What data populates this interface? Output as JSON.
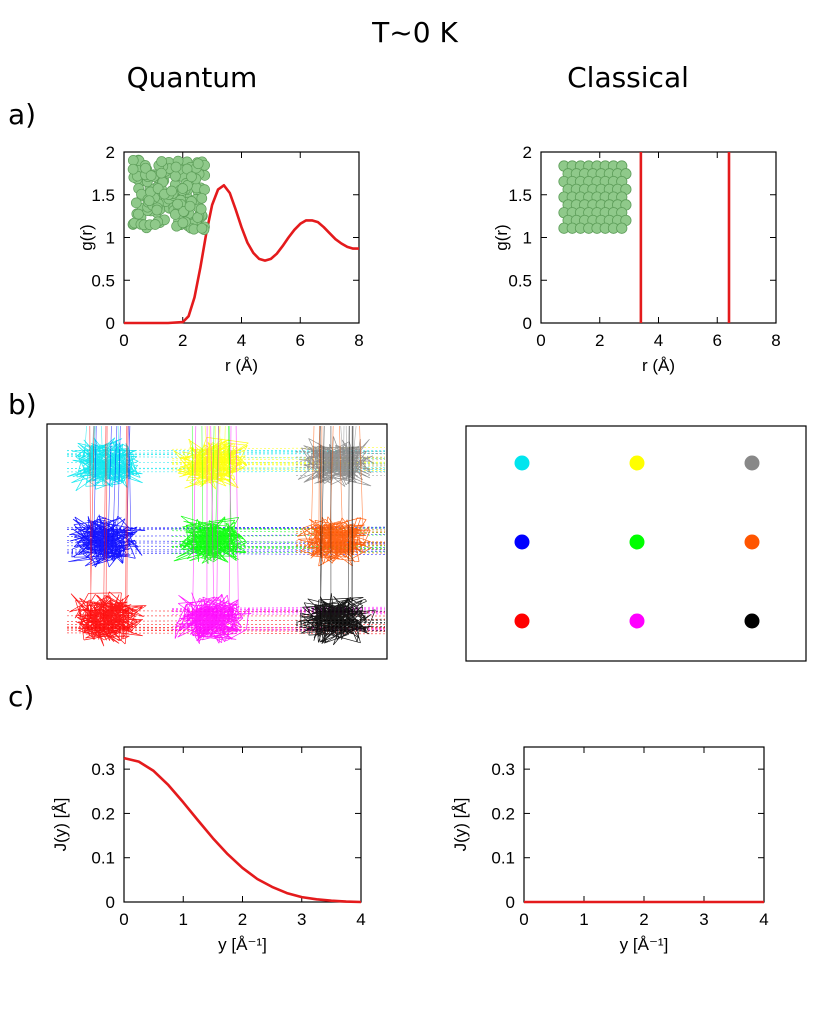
{
  "title": "T~0 K",
  "columns": {
    "left": "Quantum",
    "right": "Classical"
  },
  "panel_labels": {
    "a": "a)",
    "b": "b)",
    "c": "c)"
  },
  "colors": {
    "curve": "#e41a1c",
    "sphere": "#8fc98a",
    "sphere_edge": "#5e9e5a",
    "atoms": [
      "#00e5ee",
      "#ffff00",
      "#888888",
      "#0000ff",
      "#00ff00",
      "#ff5500",
      "#ff0000",
      "#ff00ff",
      "#000000"
    ]
  },
  "chart_data": [
    {
      "id": "a_quantum",
      "type": "line",
      "title": "",
      "xlabel": "r (Å)",
      "ylabel": "g(r)",
      "xlim": [
        0,
        8
      ],
      "ylim": [
        0,
        2
      ],
      "xticks": [
        "0",
        "2",
        "4",
        "6",
        "8"
      ],
      "yticks": [
        "0",
        "0.5",
        "1",
        "1.5",
        "2"
      ],
      "series": [
        {
          "name": "g(r)",
          "x": [
            0,
            0.5,
            1,
            1.5,
            2.0,
            2.2,
            2.4,
            2.6,
            2.8,
            3.0,
            3.2,
            3.4,
            3.6,
            3.8,
            4.0,
            4.2,
            4.4,
            4.6,
            4.8,
            5.0,
            5.2,
            5.4,
            5.6,
            5.8,
            6.0,
            6.2,
            6.4,
            6.6,
            6.8,
            7.0,
            7.2,
            7.4,
            7.6,
            7.8,
            8.0
          ],
          "y": [
            0,
            0,
            0,
            0,
            0.01,
            0.08,
            0.3,
            0.65,
            1.05,
            1.38,
            1.56,
            1.61,
            1.52,
            1.33,
            1.12,
            0.94,
            0.82,
            0.75,
            0.73,
            0.75,
            0.81,
            0.9,
            1.0,
            1.09,
            1.16,
            1.2,
            1.2,
            1.18,
            1.12,
            1.05,
            0.98,
            0.93,
            0.89,
            0.87,
            0.87
          ]
        }
      ]
    },
    {
      "id": "a_classical",
      "type": "line",
      "title": "",
      "xlabel": "r (Å)",
      "ylabel": "g(r)",
      "xlim": [
        0,
        8
      ],
      "ylim": [
        0,
        2
      ],
      "xticks": [
        "0",
        "2",
        "4",
        "6",
        "8"
      ],
      "yticks": [
        "0",
        "0.5",
        "1",
        "1.5",
        "2"
      ],
      "series": [
        {
          "name": "delta peaks",
          "peaks_x": [
            3.4,
            6.4
          ]
        }
      ]
    },
    {
      "id": "b_quantum",
      "type": "scatter",
      "title": "",
      "description_grid": "3x3 lattice of path-integral bead clouds",
      "series": [
        {
          "name": "cyan",
          "col": 0,
          "row": 0
        },
        {
          "name": "yellow",
          "col": 1,
          "row": 0
        },
        {
          "name": "gray",
          "col": 2,
          "row": 0
        },
        {
          "name": "blue",
          "col": 0,
          "row": 1
        },
        {
          "name": "green",
          "col": 1,
          "row": 1
        },
        {
          "name": "orange",
          "col": 2,
          "row": 1
        },
        {
          "name": "red",
          "col": 0,
          "row": 2
        },
        {
          "name": "magenta",
          "col": 1,
          "row": 2
        },
        {
          "name": "black",
          "col": 2,
          "row": 2
        }
      ]
    },
    {
      "id": "b_classical",
      "type": "scatter",
      "title": "",
      "series": [
        {
          "name": "cyan",
          "col": 0,
          "row": 0
        },
        {
          "name": "yellow",
          "col": 1,
          "row": 0
        },
        {
          "name": "gray",
          "col": 2,
          "row": 0
        },
        {
          "name": "blue",
          "col": 0,
          "row": 1
        },
        {
          "name": "green",
          "col": 1,
          "row": 1
        },
        {
          "name": "orange",
          "col": 2,
          "row": 1
        },
        {
          "name": "red",
          "col": 0,
          "row": 2
        },
        {
          "name": "magenta",
          "col": 1,
          "row": 2
        },
        {
          "name": "black",
          "col": 2,
          "row": 2
        }
      ]
    },
    {
      "id": "c_quantum",
      "type": "line",
      "title": "",
      "xlabel": "y [Å⁻¹]",
      "ylabel": "J(y) [Å]",
      "xlim": [
        0,
        4
      ],
      "ylim": [
        0,
        0.35
      ],
      "xticks": [
        "0",
        "1",
        "2",
        "3",
        "4"
      ],
      "yticks": [
        "0",
        "0.1",
        "0.2",
        "0.3"
      ],
      "series": [
        {
          "name": "J(y)",
          "x": [
            0,
            0.25,
            0.5,
            0.75,
            1.0,
            1.25,
            1.5,
            1.75,
            2.0,
            2.25,
            2.5,
            2.75,
            3.0,
            3.25,
            3.5,
            3.75,
            4.0
          ],
          "y": [
            0.325,
            0.317,
            0.296,
            0.264,
            0.225,
            0.184,
            0.144,
            0.108,
            0.077,
            0.052,
            0.034,
            0.02,
            0.011,
            0.006,
            0.003,
            0.001,
            0.0
          ]
        }
      ]
    },
    {
      "id": "c_classical",
      "type": "line",
      "title": "",
      "xlabel": "y [Å⁻¹]",
      "ylabel": "J(y) [Å]",
      "xlim": [
        0,
        4
      ],
      "ylim": [
        0,
        0.35
      ],
      "xticks": [
        "0",
        "1",
        "2",
        "3",
        "4"
      ],
      "yticks": [
        "0",
        "0.1",
        "0.2",
        "0.3"
      ],
      "series": [
        {
          "name": "J(y)",
          "x": [
            0,
            4
          ],
          "y": [
            0,
            0
          ]
        }
      ]
    }
  ]
}
